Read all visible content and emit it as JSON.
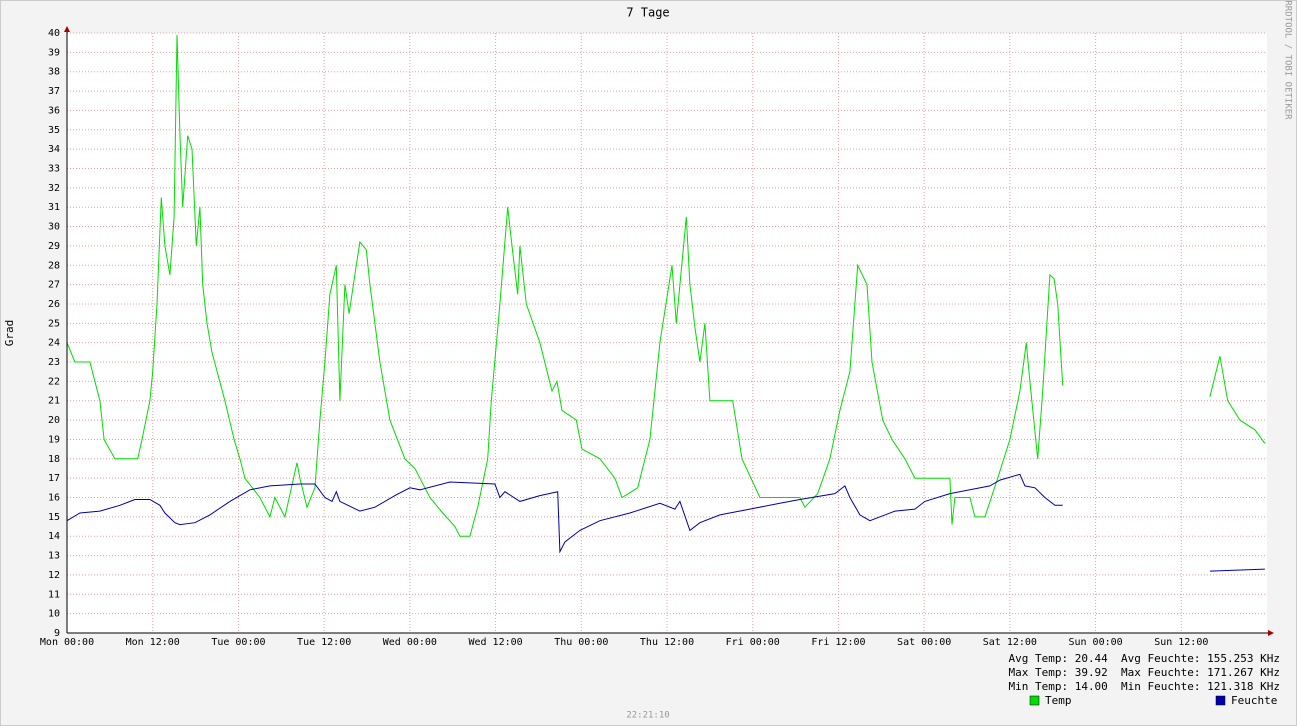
{
  "chart_data": {
    "type": "line",
    "title": "7 Tage",
    "y_label": "Grad",
    "watermark": "RRDTOOL / TOBI OETIKER",
    "timestamp": "22:21:10",
    "stats": [
      "Avg Temp: 20.44  Avg Feuchte: 155.253 KHz",
      "Max Temp: 39.92  Max Feuchte: 171.267 KHz",
      "Min Temp: 14.00  Min Feuchte: 121.318 KHz"
    ],
    "xlim": [
      0,
      168
    ],
    "ylim": [
      9,
      40
    ],
    "xticks": [
      {
        "value": 0,
        "label": "Mon 00:00"
      },
      {
        "value": 12,
        "label": "Mon 12:00"
      },
      {
        "value": 24,
        "label": "Tue 00:00"
      },
      {
        "value": 36,
        "label": "Tue 12:00"
      },
      {
        "value": 48,
        "label": "Wed 00:00"
      },
      {
        "value": 60,
        "label": "Wed 12:00"
      },
      {
        "value": 72,
        "label": "Thu 00:00"
      },
      {
        "value": 84,
        "label": "Thu 12:00"
      },
      {
        "value": 96,
        "label": "Fri 00:00"
      },
      {
        "value": 108,
        "label": "Fri 12:00"
      },
      {
        "value": 120,
        "label": "Sat 00:00"
      },
      {
        "value": 132,
        "label": "Sat 12:00"
      },
      {
        "value": 144,
        "label": "Sun 00:00"
      },
      {
        "value": 156,
        "label": "Sun 12:00"
      }
    ],
    "yticks": [
      9,
      10,
      11,
      12,
      13,
      14,
      15,
      16,
      17,
      18,
      19,
      20,
      21,
      22,
      23,
      24,
      25,
      26,
      27,
      28,
      29,
      30,
      31,
      32,
      33,
      34,
      35,
      36,
      37,
      38,
      39,
      40
    ],
    "grid": true,
    "series": [
      {
        "name": "Temp",
        "color": "#00dd00",
        "x": [
          0,
          1.1,
          3.2,
          3.9,
          4.6,
          5.2,
          6.7,
          9.9,
          10.5,
          11.6,
          12.0,
          12.6,
          13.2,
          13.7,
          14.4,
          15.0,
          15.4,
          15.8,
          16.2,
          16.9,
          17.5,
          18.1,
          18.6,
          19.0,
          19.6,
          20.3,
          22.1,
          23.4,
          24.2,
          24.9,
          27.0,
          28.4,
          29.1,
          30.5,
          32.2,
          32.6,
          33.6,
          34.7,
          35.4,
          36.1,
          36.8,
          37.7,
          38.2,
          38.9,
          39.5,
          40.5,
          41.0,
          41.9,
          42.4,
          43.8,
          45.2,
          47.3,
          48.7,
          49.4,
          50.8,
          52.6,
          54.3,
          55.0,
          56.4,
          57.5,
          58.9,
          59.4,
          60.6,
          61.7,
          62.3,
          63.1,
          63.4,
          64.3,
          66.2,
          67.9,
          68.6,
          69.3,
          71.3,
          72.1,
          74.6,
          76.7,
          77.7,
          79.9,
          81.6,
          83.0,
          84.7,
          85.3,
          86.7,
          87.2,
          87.9,
          88.6,
          89.3,
          90.0,
          93.2,
          94.5,
          97.0,
          102.6,
          103.3,
          105.1,
          106.8,
          108.2,
          109.6,
          110.7,
          112.0,
          112.7,
          114.2,
          115.5,
          117.3,
          118.7,
          123.6,
          123.9,
          124.3,
          126.4,
          127.1,
          128.5,
          130.3,
          132.0,
          133.4,
          134.3,
          134.8,
          135.9,
          136.6,
          137.6,
          138.2,
          138.7,
          139.4,
          150,
          160.0,
          161.4,
          162.5,
          164.2,
          166.3,
          167.7
        ],
        "values": [
          24,
          23,
          23,
          22,
          21,
          19,
          18,
          18,
          19,
          21,
          22.5,
          26,
          31.5,
          29,
          27.5,
          30.5,
          39.9,
          34.8,
          31,
          34.7,
          34,
          29,
          31,
          27,
          25,
          23.5,
          21,
          19,
          18,
          17,
          16,
          15,
          16,
          15,
          17.8,
          17,
          15.5,
          16.5,
          20,
          23,
          26.5,
          28,
          21,
          27,
          25.5,
          28,
          29.2,
          28.8,
          27,
          23,
          20,
          18,
          17.5,
          17,
          16,
          15.2,
          14.5,
          14,
          14,
          15.5,
          18,
          21,
          26,
          31,
          29,
          26.5,
          29,
          26,
          24,
          21.5,
          22,
          20.5,
          20,
          18.5,
          18,
          17,
          16,
          16.5,
          19,
          24,
          28,
          25,
          30.5,
          27,
          24.8,
          23,
          25,
          21,
          21,
          18,
          16,
          16,
          15.5,
          16.2,
          18,
          20.5,
          22.5,
          28,
          27,
          23,
          20,
          19,
          18,
          17,
          17,
          14.6,
          16,
          16,
          15,
          15,
          17,
          19,
          21.5,
          24,
          22,
          18,
          21.5,
          27.5,
          27.3,
          26,
          21.8,
          null,
          21.2,
          23.3,
          21,
          20,
          19.5,
          18.8
        ]
      },
      {
        "name": "Feuchte",
        "color": "#0000aa",
        "x": [
          0,
          1.8,
          4.6,
          7.4,
          9.5,
          11.6,
          13.0,
          13.7,
          15.1,
          15.8,
          17.9,
          20.0,
          22.8,
          25.6,
          28.4,
          32.6,
          34.7,
          36.1,
          37.1,
          37.7,
          38.2,
          41.0,
          43.1,
          45.9,
          48.0,
          49.4,
          53.6,
          59.9,
          60.6,
          61.3,
          63.4,
          66.2,
          68.7,
          69.0,
          69.7,
          71.8,
          74.6,
          78.8,
          83.0,
          85.1,
          85.8,
          87.2,
          88.6,
          91.4,
          95.6,
          99.8,
          102.6,
          107.5,
          108.9,
          109.6,
          111.0,
          112.4,
          115.9,
          118.7,
          120.1,
          123.6,
          129.2,
          130.6,
          133.4,
          134.1,
          135.5,
          136.9,
          138.3,
          139.4,
          150,
          160.0,
          167.7
        ],
        "values": [
          14.8,
          15.2,
          15.3,
          15.6,
          15.9,
          15.9,
          15.6,
          15.2,
          14.7,
          14.6,
          14.7,
          15.1,
          15.8,
          16.4,
          16.6,
          16.7,
          16.7,
          16.0,
          15.8,
          16.3,
          15.8,
          15.3,
          15.5,
          16.1,
          16.5,
          16.4,
          16.8,
          16.7,
          16.0,
          16.3,
          15.8,
          16.1,
          16.3,
          13.2,
          13.7,
          14.3,
          14.8,
          15.2,
          15.7,
          15.4,
          15.8,
          14.3,
          14.7,
          15.1,
          15.4,
          15.7,
          15.9,
          16.2,
          16.6,
          16.0,
          15.1,
          14.8,
          15.3,
          15.4,
          15.8,
          16.2,
          16.6,
          16.9,
          17.2,
          16.6,
          16.5,
          16.0,
          15.6,
          15.6,
          null,
          12.2,
          12.3
        ]
      }
    ]
  }
}
